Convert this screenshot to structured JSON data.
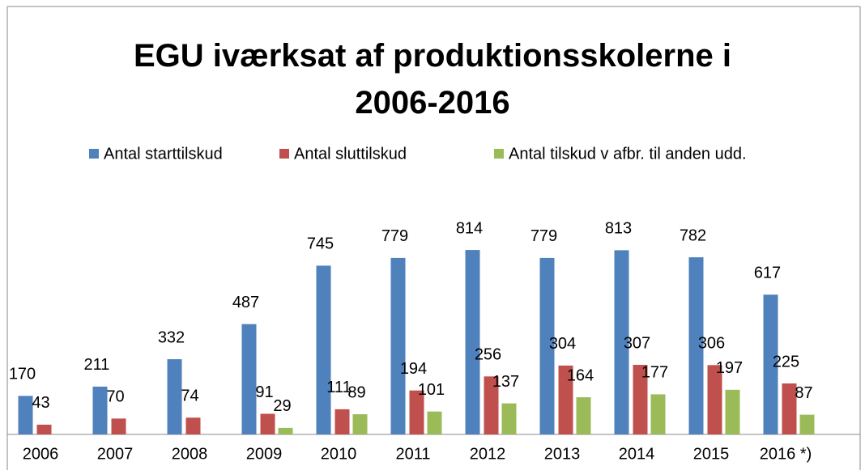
{
  "chart_data": {
    "type": "bar",
    "title": "EGU  iværksat af produktionsskolerne i 2006-2016",
    "categories": [
      "2006",
      "2007",
      "2008",
      "2009",
      "2010",
      "2011",
      "2012",
      "2013",
      "2014",
      "2015",
      "2016 *)"
    ],
    "series": [
      {
        "name": "Antal starttilskud",
        "color": "#4f81bd",
        "values": [
          170,
          211,
          332,
          487,
          745,
          779,
          814,
          779,
          813,
          782,
          617
        ]
      },
      {
        "name": "Antal sluttilskud",
        "color": "#c0504d",
        "values": [
          43,
          70,
          74,
          91,
          111,
          194,
          256,
          304,
          307,
          306,
          225
        ]
      },
      {
        "name": "Antal tilskud v afbr. til anden udd.",
        "color": "#9bbb59",
        "values": [
          null,
          null,
          null,
          29,
          89,
          101,
          137,
          164,
          177,
          197,
          87
        ]
      }
    ],
    "legend": "top"
  }
}
